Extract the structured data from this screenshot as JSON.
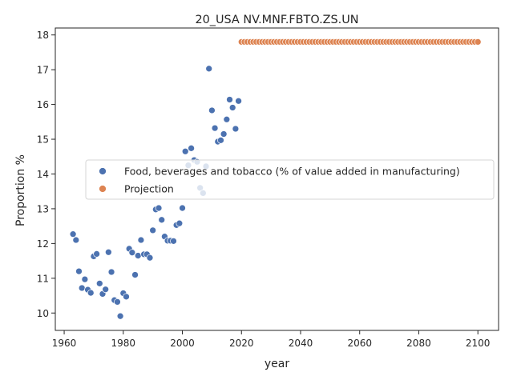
{
  "chart_data": {
    "type": "scatter",
    "title": "20_USA NV.MNF.FBTO.ZS.UN",
    "xlabel": "year",
    "ylabel": "Proportion %",
    "xlim": [
      1957,
      2107
    ],
    "ylim": [
      9.5,
      18.2
    ],
    "xticks": [
      1960,
      1980,
      2000,
      2020,
      2040,
      2060,
      2080,
      2100
    ],
    "yticks": [
      10,
      11,
      12,
      13,
      14,
      15,
      16,
      17,
      18
    ],
    "grid": false,
    "legend_position": "center",
    "series": [
      {
        "name": "Food, beverages and tobacco (% of value added in manufacturing)",
        "color": "#4c72b0",
        "points": [
          [
            1963,
            12.27
          ],
          [
            1964,
            12.1
          ],
          [
            1965,
            11.2
          ],
          [
            1966,
            10.72
          ],
          [
            1967,
            10.97
          ],
          [
            1968,
            10.67
          ],
          [
            1969,
            10.58
          ],
          [
            1970,
            11.63
          ],
          [
            1971,
            11.7
          ],
          [
            1972,
            10.85
          ],
          [
            1973,
            10.55
          ],
          [
            1974,
            10.68
          ],
          [
            1975,
            11.75
          ],
          [
            1976,
            11.18
          ],
          [
            1977,
            10.37
          ],
          [
            1978,
            10.32
          ],
          [
            1979,
            9.91
          ],
          [
            1980,
            10.57
          ],
          [
            1981,
            10.47
          ],
          [
            1982,
            11.85
          ],
          [
            1983,
            11.74
          ],
          [
            1984,
            11.1
          ],
          [
            1985,
            11.65
          ],
          [
            1986,
            12.1
          ],
          [
            1987,
            11.69
          ],
          [
            1988,
            11.69
          ],
          [
            1989,
            11.59
          ],
          [
            1990,
            12.38
          ],
          [
            1991,
            12.98
          ],
          [
            1992,
            13.02
          ],
          [
            1993,
            12.68
          ],
          [
            1994,
            12.2
          ],
          [
            1995,
            12.08
          ],
          [
            1996,
            12.08
          ],
          [
            1997,
            12.07
          ],
          [
            1998,
            12.53
          ],
          [
            1999,
            12.58
          ],
          [
            2000,
            13.02
          ],
          [
            2001,
            14.65
          ],
          [
            2002,
            14.25
          ],
          [
            2003,
            14.74
          ],
          [
            2004,
            14.4
          ],
          [
            2005,
            14.35
          ],
          [
            2006,
            13.6
          ],
          [
            2007,
            13.45
          ],
          [
            2008,
            14.22
          ],
          [
            2009,
            17.03
          ],
          [
            2010,
            15.83
          ],
          [
            2011,
            15.32
          ],
          [
            2012,
            14.93
          ],
          [
            2013,
            14.97
          ],
          [
            2014,
            15.15
          ],
          [
            2015,
            15.57
          ],
          [
            2016,
            16.14
          ],
          [
            2017,
            15.91
          ],
          [
            2018,
            15.3
          ],
          [
            2019,
            16.1
          ]
        ]
      },
      {
        "name": "Projection",
        "color": "#dd8452",
        "x_start": 2020,
        "x_end": 2100,
        "value": 17.8
      }
    ]
  }
}
